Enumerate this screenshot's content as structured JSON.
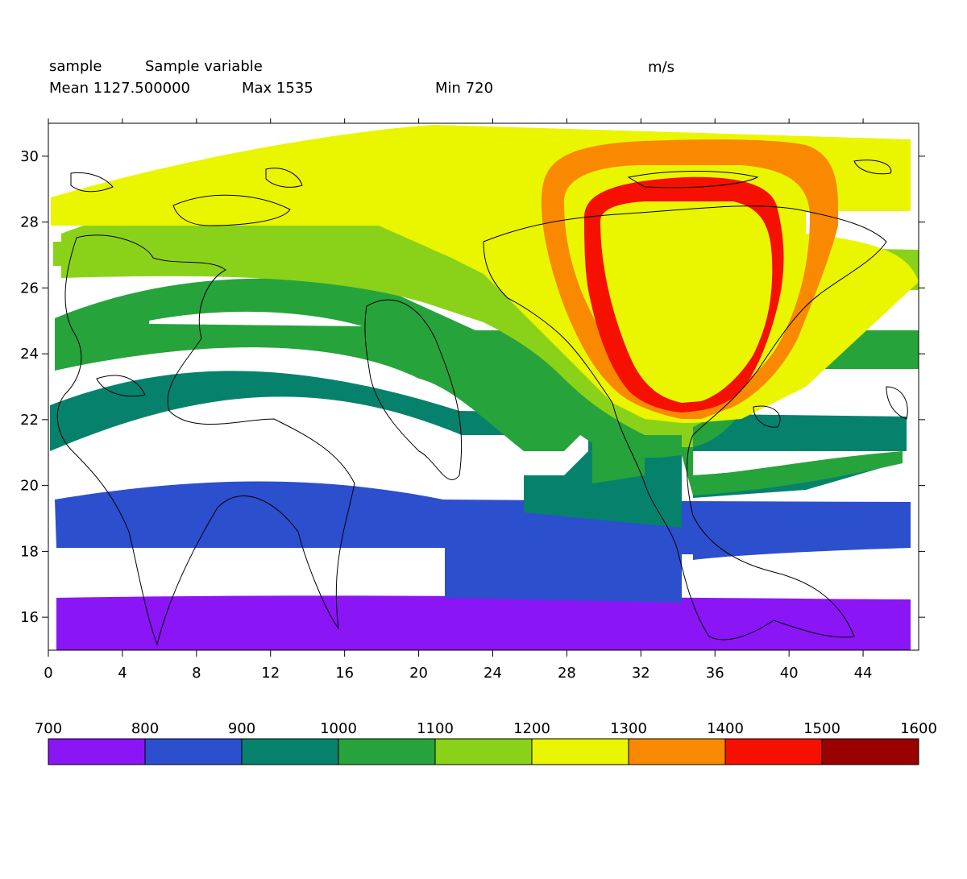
{
  "header": {
    "dataset": "sample",
    "variable": "Sample variable",
    "units": "m/s",
    "mean": "Mean 1127.500000",
    "max": "Max 1535",
    "min": "Min 720"
  },
  "chart_data": {
    "type": "heatmap",
    "title": "Sample variable",
    "xlabel": "",
    "ylabel": "",
    "units": "m/s",
    "xlim": [
      0,
      47
    ],
    "ylim": [
      15,
      31
    ],
    "x_ticks": [
      "0",
      "4",
      "8",
      "12",
      "16",
      "20",
      "24",
      "28",
      "32",
      "36",
      "40",
      "44"
    ],
    "y_ticks": [
      "16",
      "18",
      "20",
      "22",
      "24",
      "26",
      "28",
      "30"
    ],
    "colorbar": {
      "levels": [
        "700",
        "800",
        "900",
        "1000",
        "1100",
        "1200",
        "1300",
        "1400",
        "1500",
        "1600"
      ],
      "colors": [
        "#8a15f5",
        "#2c4fce",
        "#06826c",
        "#27a33b",
        "#8ad21a",
        "#eaf500",
        "#f88900",
        "#f51000",
        "#9a0000"
      ]
    },
    "overlay": "continent outlines",
    "bands": [
      {
        "level": "700-800",
        "color": "#8a15f5",
        "y_range": [
          15.0,
          16.6
        ],
        "x_range": [
          0.4,
          46.6
        ]
      },
      {
        "level": "800-900",
        "color": "#2c4fce",
        "y_range": [
          16.5,
          20.2
        ],
        "x_range": [
          0.4,
          46.6
        ]
      },
      {
        "level": "900-1000",
        "color": "#06826c",
        "y_range": [
          18.7,
          23.7
        ],
        "x_range": [
          0.0,
          46.6
        ]
      },
      {
        "level": "1000-1100",
        "color": "#27a33b",
        "y_range": [
          20.2,
          26.3
        ],
        "x_range": [
          0.3,
          47.0
        ]
      },
      {
        "level": "1100-1200",
        "color": "#8ad21a",
        "y_range": [
          20.8,
          28.6
        ],
        "x_range": [
          0.5,
          46.8
        ]
      },
      {
        "level": "1200-1300",
        "color": "#eaf500",
        "y_range": [
          21.8,
          31.0
        ],
        "x_range": [
          0.1,
          46.8
        ]
      },
      {
        "level": "1300-1400",
        "color": "#f88900",
        "y_range": [
          22.0,
          30.4
        ],
        "x_range": [
          26.5,
          42.5
        ]
      },
      {
        "level": "1400-1500",
        "color": "#f51000",
        "y_range": [
          22.2,
          29.3
        ],
        "x_range": [
          29.0,
          39.9
        ]
      }
    ]
  }
}
